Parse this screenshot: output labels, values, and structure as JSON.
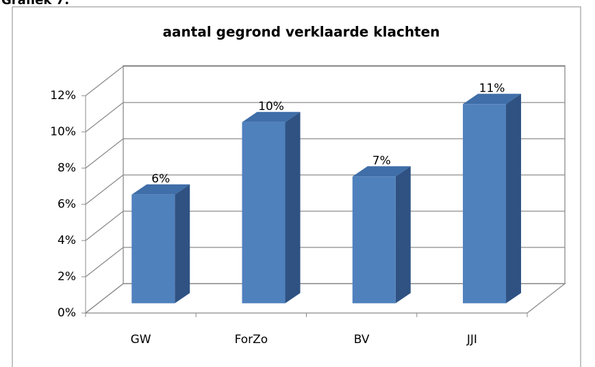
{
  "caption": "Grafiek 7:",
  "chart_data": {
    "type": "bar3d",
    "title": "aantal gegrond verklaarde klachten",
    "categories": [
      "GW",
      "ForZo",
      "BV",
      "JJI"
    ],
    "values": [
      6,
      10,
      7,
      11
    ],
    "value_labels": [
      "6%",
      "10%",
      "7%",
      "11%"
    ],
    "color": "#4f81bd",
    "ylim": [
      0,
      12
    ],
    "yticks": [
      {
        "value": 0,
        "label": "0%"
      },
      {
        "value": 2,
        "label": "2%"
      },
      {
        "value": 4,
        "label": "4%"
      },
      {
        "value": 6,
        "label": "6%"
      },
      {
        "value": 8,
        "label": "8%"
      },
      {
        "value": 10,
        "label": "10%"
      },
      {
        "value": 12,
        "label": "12%"
      }
    ],
    "grid": true
  }
}
